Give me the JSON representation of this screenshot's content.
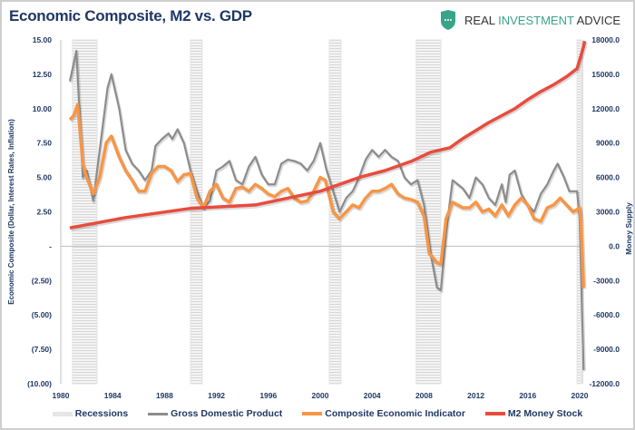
{
  "header": {
    "title": "Economic Composite, M2 vs. GDP"
  },
  "logo": {
    "part1": "REAL ",
    "part2": "INVESTMENT",
    "part3": " ADVICE",
    "icon": "shield-icon",
    "color": "#3aa48a"
  },
  "chart_data": {
    "type": "line",
    "title": "Economic Composite, M2 vs. GDP",
    "ylabel": "Economic Composite (Dollar, Interest Rates, Inflation)",
    "y2label": "Money Supply",
    "ylim": [
      -10,
      15
    ],
    "y2lim": [
      -12000,
      18000
    ],
    "xlim": [
      1980,
      2020
    ],
    "x_ticks": [
      "1980",
      "1984",
      "1988",
      "1992",
      "1996",
      "2000",
      "2004",
      "2008",
      "2012",
      "2016",
      "2020"
    ],
    "y_ticks": [
      "15.00",
      "12.50",
      "10.00",
      "7.50",
      "5.00",
      "2.50",
      "-",
      "(2.50)",
      "(5.00)",
      "(7.50)",
      "(10.00)"
    ],
    "y2_ticks": [
      "18000.0",
      "15000.0",
      "12000.0",
      "9000.0",
      "6000.0",
      "3000.0",
      "0.0",
      "-3000.0",
      "-6000.0",
      "-9000.0",
      "-12000.0"
    ],
    "grid": false,
    "legend_position": "bottom",
    "recessions": [
      [
        1980.9,
        1982.8
      ],
      [
        1990.0,
        1990.9
      ],
      [
        2000.7,
        2001.6
      ],
      [
        2007.4,
        2009.3
      ],
      [
        2019.8,
        2020.0
      ]
    ],
    "series": [
      {
        "name": "Recessions",
        "color": "#d9d9d9"
      },
      {
        "name": "Gross Domestic Product",
        "color": "#8c8c8c",
        "axis": "left",
        "x": [
          1980.7,
          1981.2,
          1981.7,
          1982,
          1982.5,
          1983,
          1983.6,
          1983.9,
          1984.5,
          1985,
          1985.5,
          1986,
          1986.5,
          1987,
          1987.3,
          1987.8,
          1988.3,
          1988.6,
          1989,
          1989.5,
          1990,
          1990.5,
          1991,
          1991.5,
          1992,
          1992.5,
          1993,
          1993.5,
          1994,
          1994.5,
          1995,
          1995.5,
          1996,
          1996.5,
          1997,
          1997.5,
          1998,
          1998.5,
          1999,
          1999.5,
          2000,
          2000.5,
          2001,
          2001.5,
          2002,
          2002.5,
          2003,
          2003.5,
          2004,
          2004.5,
          2005,
          2005.5,
          2006,
          2006.5,
          2007,
          2007.5,
          2008,
          2008.5,
          2009,
          2009.3,
          2009.7,
          2010.2,
          2011,
          2011.5,
          2012,
          2012.5,
          2013,
          2013.5,
          2014,
          2014.3,
          2014.6,
          2015,
          2015.5,
          2016,
          2016.5,
          2017,
          2017.5,
          2018,
          2018.3,
          2018.8,
          2019.2,
          2019.8,
          2020,
          2020.3
        ],
        "y": [
          12,
          14.2,
          5,
          5.5,
          3.3,
          7,
          11.5,
          12.5,
          10,
          7,
          6,
          5.5,
          4.8,
          5.5,
          7.3,
          7.8,
          8.2,
          7.8,
          8.5,
          7.5,
          5.5,
          4,
          2.8,
          3.3,
          5.5,
          5.8,
          6.2,
          4.8,
          4.5,
          5.8,
          6.5,
          5.2,
          4.5,
          4.5,
          6,
          6.3,
          6.2,
          6,
          5.5,
          6.2,
          7.5,
          5.5,
          4,
          2.5,
          3.5,
          4,
          5,
          6.3,
          7,
          6.5,
          7,
          6.5,
          6.2,
          5,
          4.5,
          4.8,
          3,
          -0.5,
          -3,
          -3.2,
          1,
          4.8,
          4.2,
          3.5,
          5,
          4.5,
          3.5,
          3,
          4.5,
          3.2,
          5.2,
          5.5,
          3.8,
          3,
          2.5,
          3.8,
          4.5,
          5.5,
          6,
          5,
          4,
          4,
          2,
          -9
        ]
      },
      {
        "name": "Composite Economic Indicator",
        "color": "#f79646",
        "axis": "left",
        "x": [
          1980.7,
          1981,
          1981.3,
          1981.7,
          1982,
          1982.5,
          1983,
          1983.5,
          1983.9,
          1984.5,
          1985,
          1985.5,
          1986,
          1986.5,
          1987,
          1987.5,
          1988,
          1988.5,
          1989,
          1989.5,
          1990,
          1990.5,
          1991,
          1991.5,
          1992,
          1992.5,
          1993,
          1993.5,
          1994,
          1994.5,
          1995,
          1995.5,
          1996,
          1996.5,
          1997,
          1997.5,
          1998,
          1998.5,
          1999,
          1999.5,
          2000,
          2000.4,
          2001,
          2001.5,
          2002,
          2002.5,
          2003,
          2003.5,
          2004,
          2004.5,
          2005,
          2005.5,
          2006,
          2006.5,
          2007,
          2007.5,
          2008,
          2008.4,
          2009,
          2009.3,
          2009.7,
          2010.2,
          2011,
          2011.5,
          2012,
          2012.5,
          2013,
          2013.5,
          2014,
          2014.5,
          2015,
          2015.5,
          2016,
          2016.5,
          2017,
          2017.5,
          2018,
          2018.5,
          2019,
          2019.5,
          2020,
          2020.1,
          2020.3
        ],
        "y": [
          9.2,
          9.5,
          10.3,
          6,
          5,
          3.8,
          5,
          7.5,
          8,
          6.5,
          5.5,
          4.8,
          4,
          4,
          5.3,
          5.8,
          5.8,
          5.5,
          4.7,
          5.2,
          5.3,
          3.5,
          2.8,
          4,
          4.5,
          3.5,
          3.2,
          4.2,
          4.3,
          4,
          4.5,
          4.2,
          3.8,
          3.6,
          4,
          4.2,
          3.5,
          3.2,
          3.3,
          4,
          5,
          4.8,
          2.5,
          2,
          2.5,
          3,
          2.8,
          3.5,
          4,
          4,
          4.2,
          4.5,
          3.8,
          3.5,
          3.4,
          3.2,
          2.2,
          -0.5,
          -1.2,
          -1.3,
          2,
          3.2,
          2.8,
          2.8,
          3.2,
          2.5,
          2.7,
          2.2,
          3,
          2.2,
          3,
          3.5,
          3,
          2,
          1.8,
          2.8,
          3,
          3.5,
          3,
          2.5,
          2.8,
          2,
          -3
        ]
      },
      {
        "name": "M2 Money Stock",
        "color": "#e84c3d",
        "axis": "right",
        "x": [
          1980.7,
          1985,
          1990,
          1995,
          2000,
          2003,
          2005,
          2007,
          2008.5,
          2010,
          2011,
          2013,
          2015,
          2016,
          2017,
          2018,
          2019,
          2019.8,
          2020.2,
          2020.4
        ],
        "y": [
          1600,
          2500,
          3300,
          3600,
          4800,
          6000,
          6600,
          7400,
          8200,
          8600,
          9400,
          10800,
          12000,
          12800,
          13500,
          14100,
          14800,
          15500,
          17000,
          17900
        ]
      }
    ]
  }
}
